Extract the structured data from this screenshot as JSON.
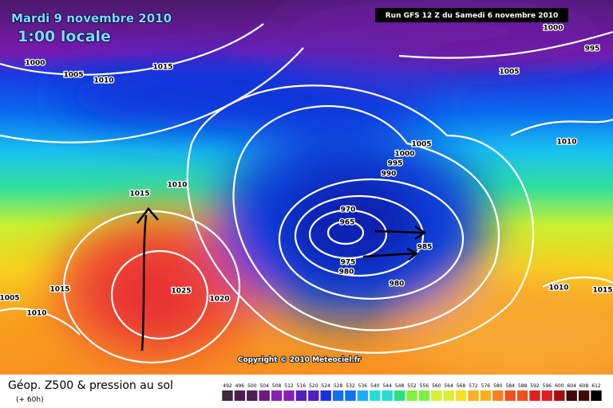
{
  "header": {
    "date": "Mardi 9 novembre 2010",
    "time": "1:00 locale",
    "run": "Run GFS 12 Z du Samedi 6 novembre 2010"
  },
  "isobar_labels": [
    1000,
    1005,
    1010,
    1015,
    1000,
    995,
    1005,
    1005,
    1010,
    1000,
    995,
    990,
    1015,
    1010,
    970,
    965,
    985,
    975,
    980,
    980,
    1015,
    1025,
    1020,
    1005,
    1010,
    1010,
    1015
  ],
  "copyright": "Copyright © 2010 Meteociel.fr",
  "legend": {
    "title": "Géop. Z500 & pression au sol",
    "lead": "(+ 60h)",
    "scale": [
      492,
      496,
      500,
      504,
      508,
      512,
      516,
      520,
      524,
      528,
      532,
      536,
      540,
      544,
      548,
      552,
      556,
      560,
      564,
      568,
      572,
      576,
      580,
      584,
      588,
      592,
      596,
      600,
      604,
      608,
      612
    ]
  }
}
